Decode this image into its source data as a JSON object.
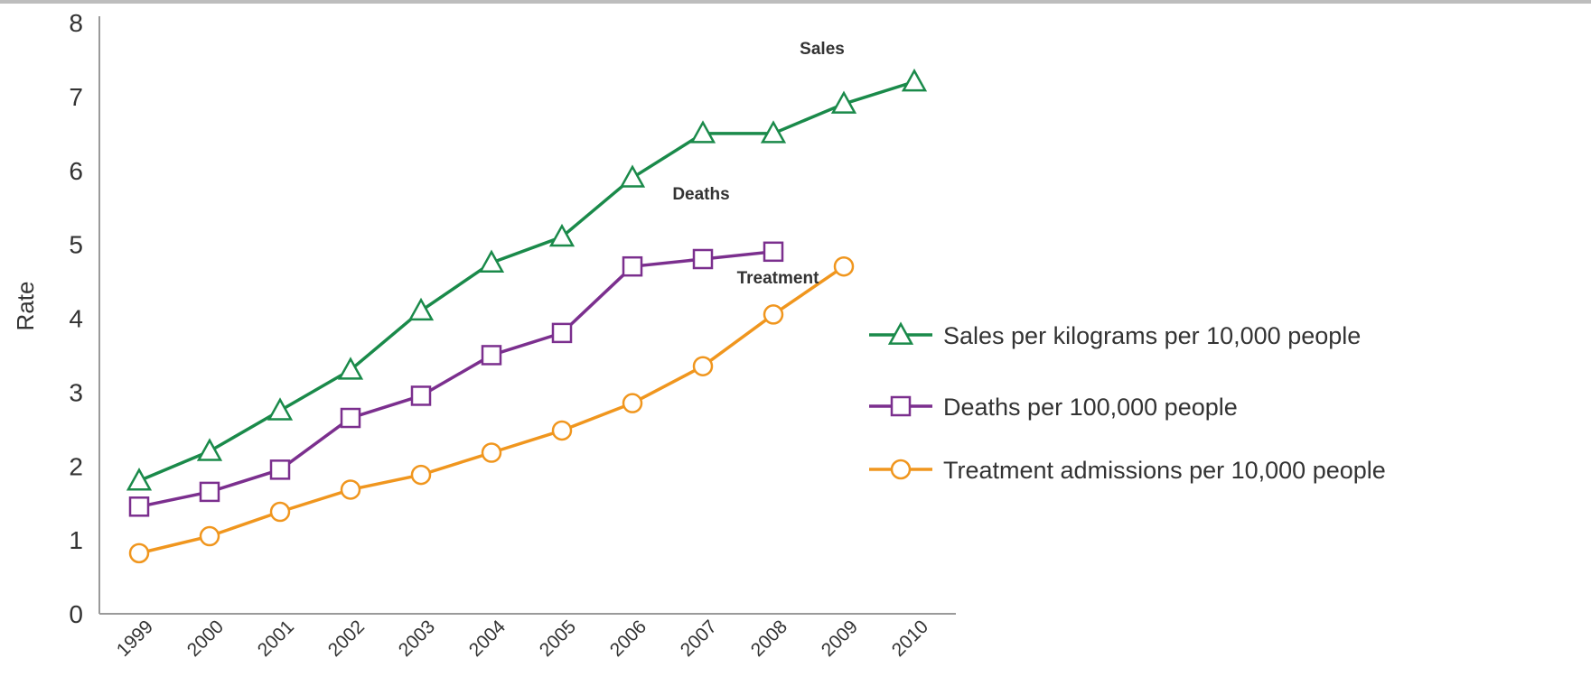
{
  "chart_data": {
    "type": "line",
    "title": "",
    "xlabel": "",
    "ylabel": "Rate",
    "x": [
      "1999",
      "2000",
      "2001",
      "2002",
      "2003",
      "2004",
      "2005",
      "2006",
      "2007",
      "2008",
      "2009",
      "2010"
    ],
    "ylim": [
      0,
      8
    ],
    "yticks": [
      "0",
      "1",
      "2",
      "3",
      "4",
      "5",
      "6",
      "7",
      "8"
    ],
    "grid": false,
    "legend_placement": "right",
    "series": [
      {
        "name": "Sales per kilograms per 10,000 people",
        "label": "Sales",
        "marker": "triangle",
        "color": "#1a8a4a",
        "values": [
          1.8,
          2.2,
          2.75,
          3.3,
          4.1,
          4.75,
          5.1,
          5.9,
          6.5,
          6.5,
          6.9,
          7.2
        ]
      },
      {
        "name": "Deaths per 100,000 people",
        "label": "Deaths",
        "marker": "square",
        "color": "#7b2f8e",
        "values": [
          1.45,
          1.65,
          1.95,
          2.65,
          2.95,
          3.5,
          3.8,
          4.7,
          4.8,
          4.9,
          null,
          null
        ]
      },
      {
        "name": "Treatment admissions per 10,000 people",
        "label": "Treatment",
        "marker": "circle",
        "color": "#f0961e",
        "values": [
          0.82,
          1.05,
          1.38,
          1.68,
          1.88,
          2.18,
          2.48,
          2.85,
          3.35,
          4.05,
          4.7,
          null
        ]
      }
    ]
  }
}
